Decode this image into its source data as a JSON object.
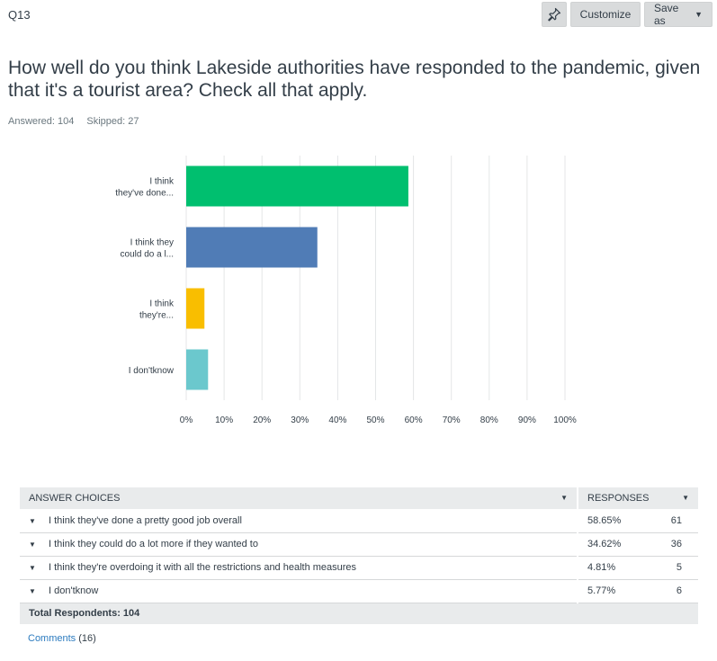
{
  "question": {
    "number": "Q13",
    "text": "How well do you think Lakeside authorities have responded to the pandemic, given that it's a tourist area? Check all that apply.",
    "answered": "Answered: 104",
    "skipped": "Skipped: 27"
  },
  "toolbar": {
    "pin_icon": "pin-icon",
    "customize_label": "Customize",
    "save_label": "Save as"
  },
  "chart_data": {
    "type": "bar",
    "orientation": "horizontal",
    "categories": [
      "I think they've done...",
      "I think they could do a l...",
      "I think they're...",
      "I don'tknow"
    ],
    "category_label_lines": [
      [
        "I think",
        "they've done..."
      ],
      [
        "I think they",
        "could do a l..."
      ],
      [
        "I think",
        "they're..."
      ],
      [
        "I don'tknow"
      ]
    ],
    "values": [
      58.65,
      34.62,
      4.81,
      5.77
    ],
    "colors": [
      "#00bf6f",
      "#507cb6",
      "#f9be00",
      "#6bc8cd"
    ],
    "xlim": [
      0,
      100
    ],
    "xticks": [
      "0%",
      "10%",
      "20%",
      "30%",
      "40%",
      "50%",
      "60%",
      "70%",
      "80%",
      "90%",
      "100%"
    ],
    "grid": true
  },
  "table": {
    "headers": {
      "choices": "ANSWER CHOICES",
      "responses": "RESPONSES"
    },
    "rows": [
      {
        "choice": "I think they've done a pretty good job overall",
        "percent": "58.65%",
        "count": "61"
      },
      {
        "choice": "I think they could do a lot more if they wanted to",
        "percent": "34.62%",
        "count": "36"
      },
      {
        "choice": "I think they're overdoing it with all the restrictions and health measures",
        "percent": "4.81%",
        "count": "5"
      },
      {
        "choice": "I don'tknow",
        "percent": "5.77%",
        "count": "6"
      }
    ],
    "total": "Total Respondents: 104"
  },
  "comments": {
    "label": "Comments",
    "count": "(16)"
  }
}
